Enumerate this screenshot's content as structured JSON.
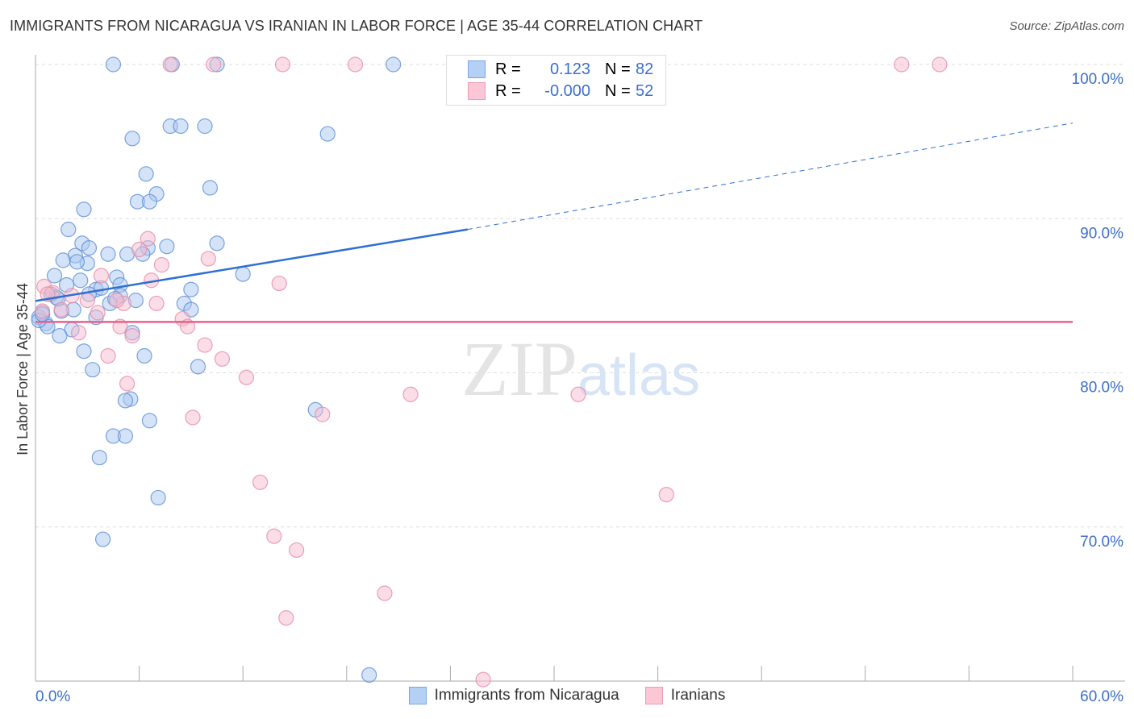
{
  "title": "IMMIGRANTS FROM NICARAGUA VS IRANIAN IN LABOR FORCE | AGE 35-44 CORRELATION CHART",
  "source": "Source: ZipAtlas.com",
  "watermark": "ZIPatlas",
  "colors": {
    "blue": "#5b8fd6",
    "blue_fill": "#a9c8f0",
    "pink": "#e88aa8",
    "pink_fill": "#f5bccd",
    "blue_line": "#2f6fd3",
    "pink_line": "#e8608a"
  },
  "legend": {
    "rows": [
      {
        "r_label": "R =",
        "r_value": "0.123",
        "n_label": "N =",
        "n_value": "82"
      },
      {
        "r_label": "R =",
        "r_value": "-0.000",
        "n_label": "N =",
        "n_value": "52"
      }
    ]
  },
  "chart_data": {
    "type": "scatter",
    "title": "IMMIGRANTS FROM NICARAGUA VS IRANIAN IN LABOR FORCE | AGE 35-44 CORRELATION CHART",
    "xlabel": "",
    "ylabel": "In Labor Force | Age 35-44",
    "xlim": [
      0,
      60
    ],
    "ylim": [
      60,
      100
    ],
    "x_tick_labels": [
      "0.0%",
      "60.0%"
    ],
    "y_ticks": [
      100,
      90,
      80,
      70
    ],
    "y_tick_labels": [
      "100.0%",
      "90.0%",
      "80.0%",
      "70.0%"
    ],
    "grid": true,
    "legend_placement": "bottom",
    "series": [
      {
        "name": "Immigrants from Nicaragua",
        "trend": {
          "x": [
            0,
            25,
            60
          ],
          "y": [
            84.66,
            89.3,
            96.2
          ],
          "solid_until": 25
        },
        "points": [
          [
            4.5,
            100
          ],
          [
            7.9,
            100
          ],
          [
            10.5,
            100
          ],
          [
            20.7,
            100
          ],
          [
            7.8,
            96.0
          ],
          [
            8.4,
            96.0
          ],
          [
            9.8,
            96.0
          ],
          [
            16.9,
            95.5
          ],
          [
            5.6,
            95.2
          ],
          [
            6.4,
            92.9
          ],
          [
            10.1,
            92.0
          ],
          [
            7.0,
            91.6
          ],
          [
            5.9,
            91.1
          ],
          [
            6.6,
            91.1
          ],
          [
            2.8,
            90.6
          ],
          [
            1.9,
            89.3
          ],
          [
            2.7,
            88.4
          ],
          [
            3.1,
            88.1
          ],
          [
            7.6,
            88.2
          ],
          [
            10.5,
            88.4
          ],
          [
            6.5,
            88.1
          ],
          [
            2.3,
            87.6
          ],
          [
            5.3,
            87.7
          ],
          [
            4.2,
            87.7
          ],
          [
            1.6,
            87.3
          ],
          [
            3.0,
            87.1
          ],
          [
            2.4,
            87.2
          ],
          [
            6.2,
            87.7
          ],
          [
            12.0,
            86.4
          ],
          [
            1.1,
            86.3
          ],
          [
            4.7,
            86.2
          ],
          [
            2.6,
            86.0
          ],
          [
            1.8,
            85.7
          ],
          [
            4.9,
            85.7
          ],
          [
            9.0,
            85.4
          ],
          [
            3.5,
            85.4
          ],
          [
            3.8,
            85.5
          ],
          [
            0.9,
            85.1
          ],
          [
            1.2,
            84.9
          ],
          [
            4.9,
            85.0
          ],
          [
            8.6,
            84.5
          ],
          [
            9.0,
            84.1
          ],
          [
            5.8,
            84.7
          ],
          [
            4.3,
            84.5
          ],
          [
            2.2,
            84.1
          ],
          [
            1.5,
            84.0
          ],
          [
            0.4,
            83.9
          ],
          [
            0.2,
            83.6
          ],
          [
            0.6,
            83.2
          ],
          [
            0.7,
            83.0
          ],
          [
            3.5,
            83.6
          ],
          [
            2.1,
            82.8
          ],
          [
            1.4,
            82.4
          ],
          [
            5.6,
            82.6
          ],
          [
            2.8,
            81.4
          ],
          [
            6.3,
            81.1
          ],
          [
            9.4,
            80.4
          ],
          [
            3.3,
            80.2
          ],
          [
            16.2,
            77.6
          ],
          [
            5.5,
            78.3
          ],
          [
            5.2,
            78.2
          ],
          [
            6.6,
            76.9
          ],
          [
            4.5,
            75.9
          ],
          [
            5.2,
            75.9
          ],
          [
            3.7,
            74.5
          ],
          [
            7.1,
            71.9
          ],
          [
            3.9,
            69.2
          ],
          [
            19.3,
            60.4
          ],
          [
            0.2,
            83.4
          ],
          [
            0.4,
            83.8
          ],
          [
            3.1,
            85.1
          ],
          [
            4.6,
            84.8
          ],
          [
            1.3,
            84.8
          ]
        ]
      },
      {
        "name": "Iranians",
        "trend": {
          "x": [
            0,
            60
          ],
          "y": [
            83.3,
            83.3
          ]
        },
        "points": [
          [
            7.8,
            100
          ],
          [
            10.3,
            100
          ],
          [
            14.3,
            100
          ],
          [
            18.5,
            100
          ],
          [
            50.1,
            100
          ],
          [
            52.3,
            100
          ],
          [
            6.5,
            88.7
          ],
          [
            10.0,
            87.4
          ],
          [
            7.3,
            87.0
          ],
          [
            3.8,
            86.3
          ],
          [
            14.1,
            85.8
          ],
          [
            6.7,
            86.0
          ],
          [
            0.5,
            85.6
          ],
          [
            1.0,
            85.2
          ],
          [
            3.0,
            84.7
          ],
          [
            5.1,
            84.5
          ],
          [
            7.0,
            84.5
          ],
          [
            2.1,
            85.0
          ],
          [
            1.5,
            84.1
          ],
          [
            3.6,
            83.9
          ],
          [
            8.5,
            83.5
          ],
          [
            4.9,
            83.0
          ],
          [
            8.8,
            83.0
          ],
          [
            5.6,
            82.4
          ],
          [
            2.5,
            82.6
          ],
          [
            9.8,
            81.8
          ],
          [
            4.2,
            81.1
          ],
          [
            10.8,
            80.9
          ],
          [
            5.3,
            79.3
          ],
          [
            12.2,
            79.7
          ],
          [
            21.7,
            78.6
          ],
          [
            31.4,
            78.6
          ],
          [
            16.6,
            77.3
          ],
          [
            9.1,
            77.1
          ],
          [
            13.0,
            72.9
          ],
          [
            36.5,
            72.1
          ],
          [
            13.8,
            69.4
          ],
          [
            15.1,
            68.5
          ],
          [
            20.2,
            65.7
          ],
          [
            14.5,
            64.1
          ],
          [
            25.9,
            60.1
          ],
          [
            0.4,
            84.0
          ],
          [
            0.7,
            85.1
          ],
          [
            4.7,
            84.7
          ],
          [
            6.0,
            88.0
          ]
        ]
      }
    ]
  }
}
